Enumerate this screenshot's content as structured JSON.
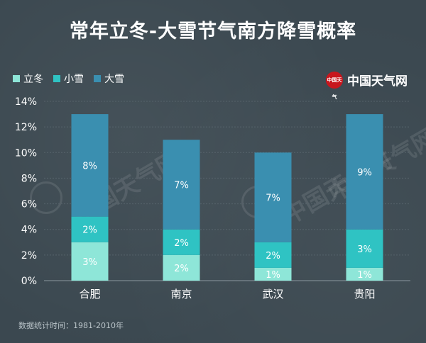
{
  "title": "常年立冬-大雪节气南方降雪概率",
  "logo": {
    "text": "中国天气网",
    "seal_text": "中国天气"
  },
  "watermark": "中国天气网",
  "footer": "数据统计时间：1981-2010年",
  "colors": {
    "lidong": "#8ee6d8",
    "xiaoxue": "#2fc3c3",
    "daxue": "#3a8fb0",
    "axis": "#8c989f",
    "grid": "#56636b",
    "text": "#ffffff"
  },
  "chart_data": {
    "type": "bar",
    "stacked": true,
    "title": "常年立冬-大雪节气南方降雪概率",
    "categories": [
      "合肥",
      "南京",
      "武汉",
      "贵阳"
    ],
    "series": [
      {
        "name": "立冬",
        "values": [
          3,
          2,
          1,
          1
        ],
        "labels": [
          "3%",
          "2%",
          "1%",
          "1%"
        ]
      },
      {
        "name": "小雪",
        "values": [
          2,
          2,
          2,
          3
        ],
        "labels": [
          "2%",
          "2%",
          "2%",
          "3%"
        ]
      },
      {
        "name": "大雪",
        "values": [
          8,
          7,
          7,
          9
        ],
        "labels": [
          "8%",
          "7%",
          "7%",
          "9%"
        ]
      }
    ],
    "ylim": [
      0,
      14
    ],
    "yticks": [
      "0%",
      "2%",
      "4%",
      "6%",
      "8%",
      "10%",
      "12%",
      "14%"
    ],
    "legend_position": "top-left",
    "xlabel": "",
    "ylabel": ""
  }
}
